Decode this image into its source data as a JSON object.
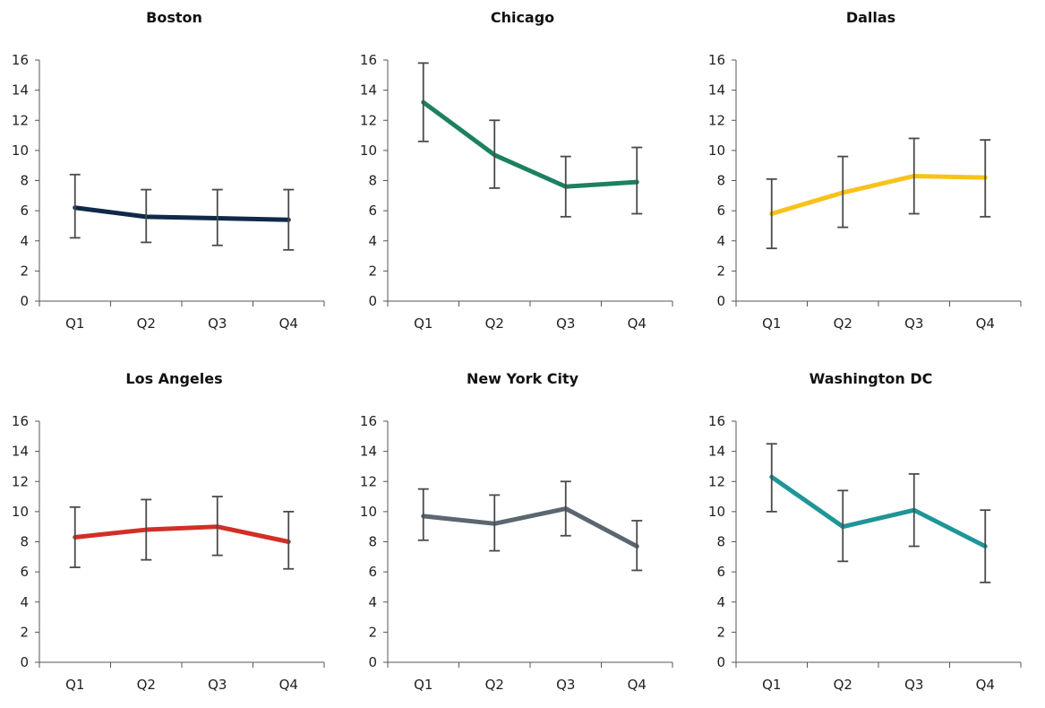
{
  "chart_data": [
    {
      "type": "line",
      "title": "Boston",
      "categories": [
        "Q1",
        "Q2",
        "Q3",
        "Q4"
      ],
      "ylim": [
        0,
        16
      ],
      "yticks": [
        0,
        2,
        4,
        6,
        8,
        10,
        12,
        14,
        16
      ],
      "color": "#0f2a48",
      "series": [
        {
          "values": [
            6.2,
            5.6,
            5.5,
            5.4
          ],
          "error_low": [
            4.2,
            3.9,
            3.7,
            3.4
          ],
          "error_high": [
            8.4,
            7.4,
            7.4,
            7.4
          ]
        }
      ]
    },
    {
      "type": "line",
      "title": "Chicago",
      "categories": [
        "Q1",
        "Q2",
        "Q3",
        "Q4"
      ],
      "ylim": [
        0,
        16
      ],
      "yticks": [
        0,
        2,
        4,
        6,
        8,
        10,
        12,
        14,
        16
      ],
      "color": "#1d8060",
      "series": [
        {
          "values": [
            13.2,
            9.7,
            7.6,
            7.9
          ],
          "error_low": [
            10.6,
            7.5,
            5.6,
            5.8
          ],
          "error_high": [
            15.8,
            12.0,
            9.6,
            10.2
          ]
        }
      ]
    },
    {
      "type": "line",
      "title": "Dallas",
      "categories": [
        "Q1",
        "Q2",
        "Q3",
        "Q4"
      ],
      "ylim": [
        0,
        16
      ],
      "yticks": [
        0,
        2,
        4,
        6,
        8,
        10,
        12,
        14,
        16
      ],
      "color": "#f9c21b",
      "series": [
        {
          "values": [
            5.8,
            7.2,
            8.3,
            8.2
          ],
          "error_low": [
            3.5,
            4.9,
            5.8,
            5.6
          ],
          "error_high": [
            8.1,
            9.6,
            10.8,
            10.7
          ]
        }
      ]
    },
    {
      "type": "line",
      "title": "Los Angeles",
      "categories": [
        "Q1",
        "Q2",
        "Q3",
        "Q4"
      ],
      "ylim": [
        0,
        16
      ],
      "yticks": [
        0,
        2,
        4,
        6,
        8,
        10,
        12,
        14,
        16
      ],
      "color": "#d22f27",
      "series": [
        {
          "values": [
            8.3,
            8.8,
            9.0,
            8.0
          ],
          "error_low": [
            6.3,
            6.8,
            7.1,
            6.2
          ],
          "error_high": [
            10.3,
            10.8,
            11.0,
            10.0
          ]
        }
      ]
    },
    {
      "type": "line",
      "title": "New York City",
      "categories": [
        "Q1",
        "Q2",
        "Q3",
        "Q4"
      ],
      "ylim": [
        0,
        16
      ],
      "yticks": [
        0,
        2,
        4,
        6,
        8,
        10,
        12,
        14,
        16
      ],
      "color": "#5c6670",
      "series": [
        {
          "values": [
            9.7,
            9.2,
            10.2,
            7.7
          ],
          "error_low": [
            8.1,
            7.4,
            8.4,
            6.1
          ],
          "error_high": [
            11.5,
            11.1,
            12.0,
            9.4
          ]
        }
      ]
    },
    {
      "type": "line",
      "title": "Washington DC",
      "categories": [
        "Q1",
        "Q2",
        "Q3",
        "Q4"
      ],
      "ylim": [
        0,
        16
      ],
      "yticks": [
        0,
        2,
        4,
        6,
        8,
        10,
        12,
        14,
        16
      ],
      "color": "#1f9597",
      "series": [
        {
          "values": [
            12.3,
            9.0,
            10.1,
            7.7
          ],
          "error_low": [
            10.0,
            6.7,
            7.7,
            5.3
          ],
          "error_high": [
            14.5,
            11.4,
            12.5,
            10.1
          ]
        }
      ]
    }
  ]
}
